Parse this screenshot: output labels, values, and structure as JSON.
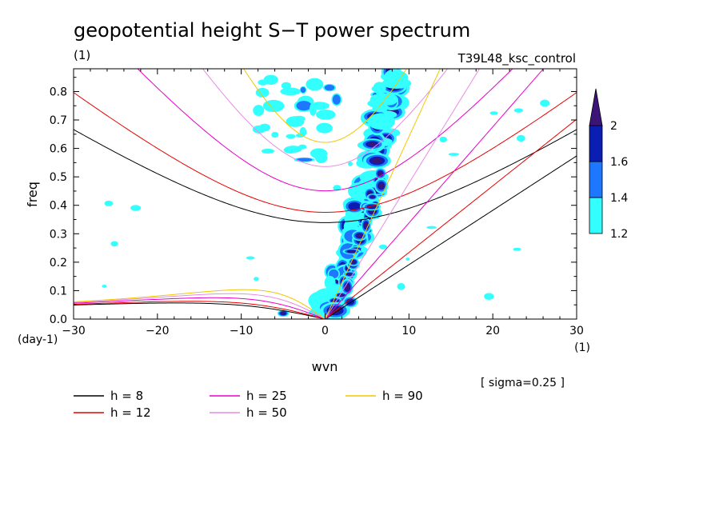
{
  "chart_data": {
    "type": "contour",
    "title": "geopotential height S−T power spectrum",
    "subtitle_left": "(1)",
    "subtitle_right": "T39L48_ksc_control",
    "xlabel": "wvn",
    "xunit": "(1)",
    "ylabel": "freq",
    "yunit": "(day-1)",
    "xlim": [
      -30,
      30
    ],
    "ylim": [
      0,
      0.88
    ],
    "xticks": [
      -30,
      -20,
      -10,
      0,
      10,
      20,
      30
    ],
    "yticks": [
      0.0,
      0.1,
      0.2,
      0.3,
      0.4,
      0.5,
      0.6,
      0.7,
      0.8
    ],
    "annotation": "[ sigma=0.25 ]",
    "colorbar": {
      "levels": [
        1.2,
        1.4,
        1.6,
        2
      ],
      "colors": [
        "#33ffff",
        "#1e78ff",
        "#0a1eb4",
        "#3c1478"
      ]
    },
    "dispersion_curves": [
      {
        "label": "h =  8",
        "h": 8,
        "color": "#000000"
      },
      {
        "label": "h = 12",
        "h": 12,
        "color": "#e60000"
      },
      {
        "label": "h = 25",
        "h": 25,
        "color": "#e600c8"
      },
      {
        "label": "h = 50",
        "h": 50,
        "color": "#e68ce6"
      },
      {
        "label": "h = 90",
        "h": 90,
        "color": "#f0c800"
      }
    ],
    "contour_regions": [
      {
        "level": 1.2,
        "wvn": [
          0,
          10
        ],
        "freq": [
          0,
          0.88
        ],
        "description": "main diagonal band from wvn 0 to 10"
      },
      {
        "level": 2,
        "wvn": [
          1,
          8
        ],
        "freq": [
          0,
          0.88
        ],
        "description": "core of diagonal band"
      },
      {
        "level": 1.2,
        "wvn": [
          -8,
          -4
        ],
        "freq": [
          0.6,
          0.8
        ],
        "description": "scattered patches"
      }
    ]
  }
}
